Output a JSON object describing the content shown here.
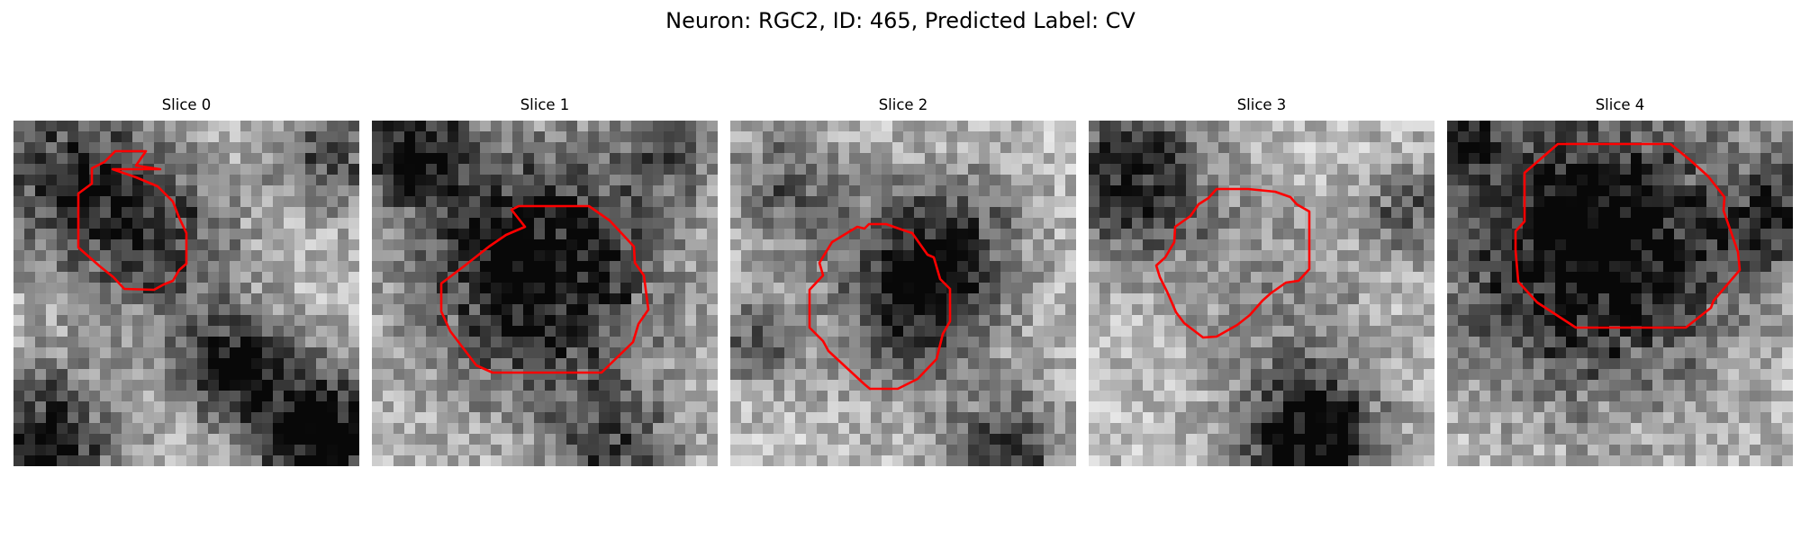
{
  "figure": {
    "title": "Neuron: RGC2, ID: 465, Predicted Label: CV",
    "contour_color": "#ff0000",
    "colormap": "gray"
  },
  "slices": [
    {
      "title": "Slice 0"
    },
    {
      "title": "Slice 1"
    },
    {
      "title": "Slice 2"
    },
    {
      "title": "Slice 3"
    },
    {
      "title": "Slice 4"
    }
  ]
}
